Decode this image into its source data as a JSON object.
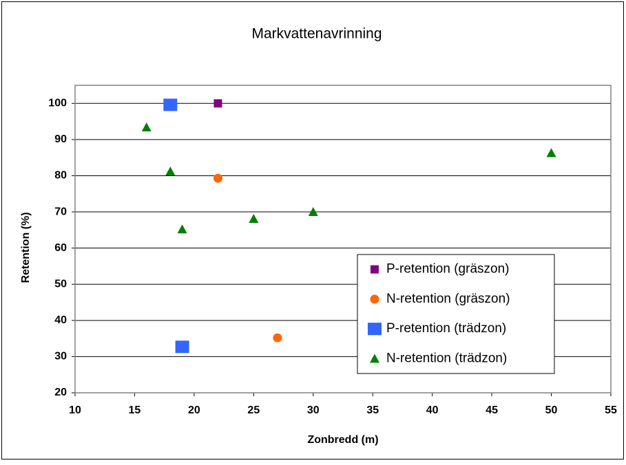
{
  "chart_data": {
    "type": "scatter",
    "title": "Markvattenavrinning",
    "xlabel": "Zonbredd (m)",
    "ylabel": "Retention (%)",
    "xlim": [
      10,
      55
    ],
    "xticks": [
      10,
      15,
      20,
      25,
      30,
      35,
      40,
      45,
      50,
      55
    ],
    "ylim": [
      20,
      105
    ],
    "yticks": [
      20,
      30,
      40,
      50,
      60,
      70,
      80,
      90,
      100
    ],
    "grid": true,
    "legend": "lower right",
    "series": [
      {
        "name": "P-retention (gräszon)",
        "color": "#800080",
        "marker": "small-square",
        "x": [
          22
        ],
        "values": [
          100
        ]
      },
      {
        "name": "N-retention (gräszon)",
        "color": "#ff6600",
        "marker": "circle",
        "x": [
          22,
          27
        ],
        "values": [
          79.3,
          35.2
        ]
      },
      {
        "name": "P-retention (trädzon)",
        "color": "#3366ff",
        "marker": "large-square",
        "x": [
          18,
          19
        ],
        "values": [
          99.6,
          32.7
        ]
      },
      {
        "name": "N-retention (trädzon)",
        "color": "#008000",
        "marker": "triangle",
        "x": [
          16,
          18,
          19,
          25,
          30,
          50
        ],
        "values": [
          93.4,
          81.2,
          65.2,
          68.1,
          70,
          86.3
        ]
      }
    ]
  }
}
